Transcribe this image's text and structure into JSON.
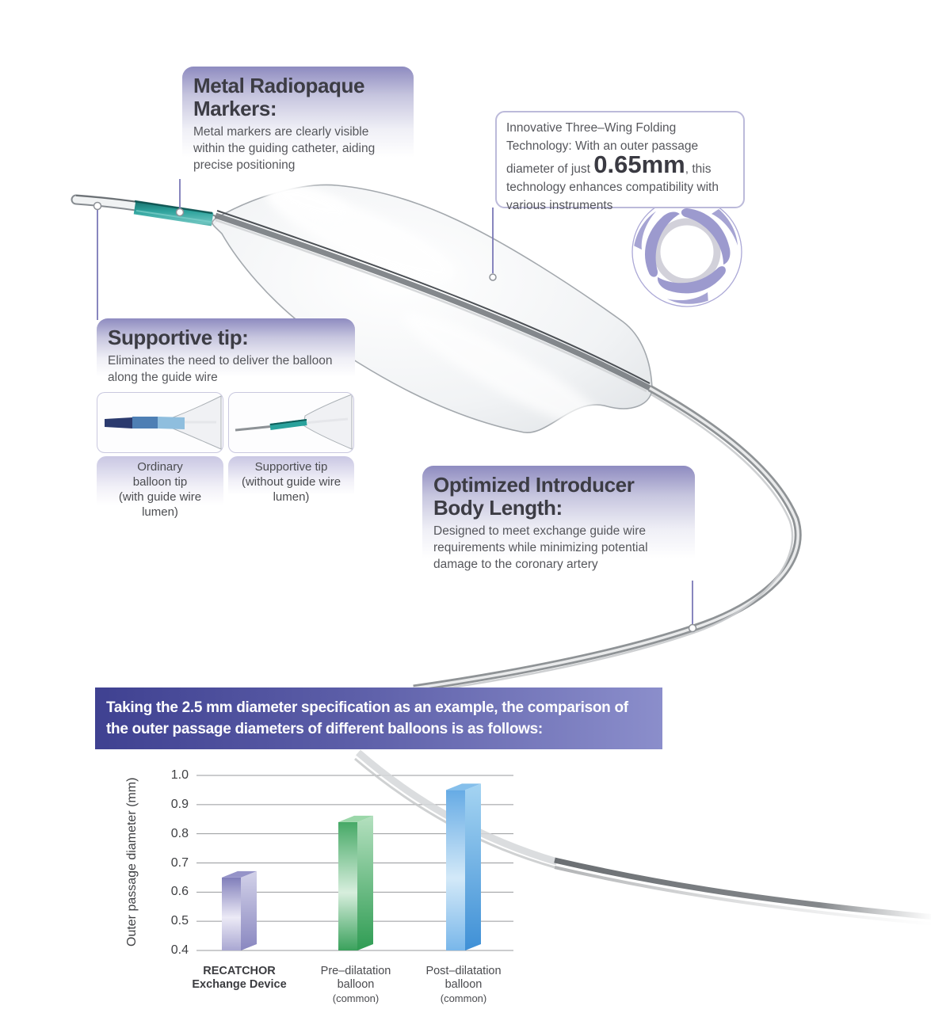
{
  "callouts": {
    "metal": {
      "title": "Metal Radiopaque Markers:",
      "body": "Metal markers are clearly visible within the guiding catheter, aiding precise positioning"
    },
    "innovative": {
      "text_before": "Innovative Three–Wing Folding Technology: With an outer passage diameter of just ",
      "highlight": "0.65mm",
      "text_after": ",  this technology enhances compatibility with various instruments"
    },
    "supportive": {
      "title": "Supportive tip:",
      "body": "Eliminates the need to deliver the balloon along the guide wire"
    },
    "optimized": {
      "title": "Optimized Introducer Body Length:",
      "body": "Designed to meet exchange guide wire requirements while minimizing potential damage to the coronary artery"
    }
  },
  "tip_comparison": {
    "ordinary_caption_lines": [
      "Ordinary",
      "balloon tip",
      "(with guide wire",
      "lumen)"
    ],
    "supportive_caption_lines": [
      "Supportive tip",
      "(without guide wire",
      "lumen)"
    ]
  },
  "banner": {
    "line1": "Taking the 2.5 mm diameter specification as an example, the comparison of",
    "line2": "the outer passage diameters of different balloons is as follows:"
  },
  "icons": {
    "three_wing_folding": "three concentric swirl wings around a ring"
  },
  "colors": {
    "callout_gradient_top": "#8e8bc0",
    "banner_left": "#3f4191",
    "banner_right": "#8b8ecb",
    "radiopaque_marker_teal": "#2ea39d",
    "leader_line": "#7b79b7",
    "title_text": "#3c3c44",
    "body_text": "#56575c"
  },
  "chart_data": {
    "type": "bar",
    "title": "Comparison of outer passage diameters of different balloons (2.5 mm diameter specification)",
    "categories": [
      "RECATCHOR Exchange Device",
      "Pre–dilatation balloon (common)",
      "Post–dilatation balloon (common)"
    ],
    "category_label_lines": [
      {
        "lines": [
          "RECATCHOR",
          "Exchange Device"
        ],
        "sub": "",
        "bold": true
      },
      {
        "lines": [
          "Pre–dilatation",
          "balloon"
        ],
        "sub": "(common)",
        "bold": false
      },
      {
        "lines": [
          "Post–dilatation",
          "balloon"
        ],
        "sub": "(common)",
        "bold": false
      }
    ],
    "values": [
      0.65,
      0.84,
      0.95
    ],
    "xlabel": "",
    "ylabel": "Outer passage diameter (mm)",
    "ylim": [
      0.4,
      1.0
    ],
    "yticks": [
      "1.0",
      "0.9",
      "0.8",
      "0.7",
      "0.6",
      "0.5",
      "0.4"
    ],
    "grid": true,
    "legend": false,
    "bar_colors": [
      {
        "front": [
          "#807eba",
          "#eceaf6",
          "#a9a7d2"
        ],
        "side": [
          "#d3d2e9",
          "#8987c0"
        ],
        "top": "#9593c8"
      },
      {
        "front": [
          "#46a966",
          "#d7eedd",
          "#3aa15c"
        ],
        "side": [
          "#b4e0bf",
          "#2f9c53"
        ],
        "top": "#9bd7a9"
      },
      {
        "front": [
          "#66abe5",
          "#d3e9f8",
          "#79b7ea"
        ],
        "side": [
          "#a5d4f2",
          "#3f90d6"
        ],
        "top": "#85bfeb"
      }
    ]
  }
}
